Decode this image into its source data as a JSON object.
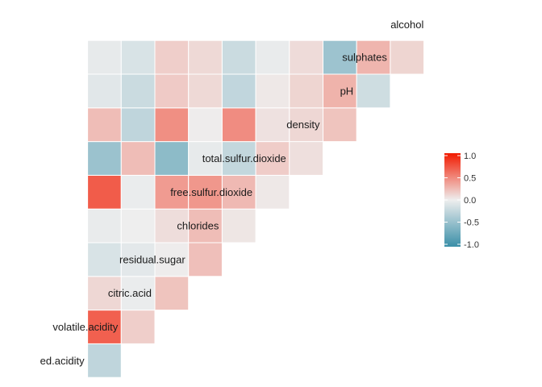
{
  "chart_data": {
    "type": "heatmap",
    "title": "",
    "xlabel": "",
    "ylabel": "",
    "variables": [
      "fixed.acidity",
      "volatile.acidity",
      "citric.acid",
      "residual.sugar",
      "chlorides",
      "free.sulfur.dioxide",
      "total.sulfur.dioxide",
      "density",
      "pH",
      "sulphates",
      "alcohol"
    ],
    "displayed_labels": [
      "ed.acidity",
      "volatile.acidity",
      "citric.acid",
      "residual.sugar",
      "chlorides",
      "free.sulfur.dioxide",
      "total.sulfur.dioxide",
      "density",
      "pH",
      "sulphates",
      "alcohol"
    ],
    "correlations": [
      [
        -0.26
      ],
      [
        0.67,
        0.15
      ],
      [
        0.11,
        -0.02,
        0.2
      ],
      [
        -0.12,
        -0.06,
        0.01,
        0.22
      ],
      [
        -0.03,
        0.0,
        0.08,
        0.23,
        0.04
      ],
      [
        0.69,
        -0.02,
        0.39,
        0.41,
        0.25,
        0.03
      ],
      [
        -0.46,
        0.23,
        -0.54,
        -0.04,
        -0.24,
        0.16,
        0.07
      ],
      [
        0.23,
        -0.26,
        0.45,
        0.01,
        0.46,
        0.06,
        0.11,
        0.2
      ],
      [
        -0.07,
        -0.2,
        0.17,
        0.1,
        -0.25,
        0.03,
        0.12,
        0.28,
        -0.18
      ],
      [
        -0.04,
        -0.12,
        0.15,
        0.1,
        -0.2,
        -0.03,
        0.09,
        -0.45,
        0.27,
        0.12
      ]
    ],
    "scale_min": -1.0,
    "scale_max": 1.0,
    "colors": {
      "low": "#3A8FA8",
      "mid": "#EEEEEE",
      "high": "#F21A00"
    },
    "legend": {
      "position": "right",
      "ticks": [
        1.0,
        0.5,
        0.0,
        -0.5,
        -1.0
      ],
      "tick_labels": [
        "1.0",
        "0.5",
        "0.0",
        "-0.5",
        "-1.0"
      ]
    }
  }
}
